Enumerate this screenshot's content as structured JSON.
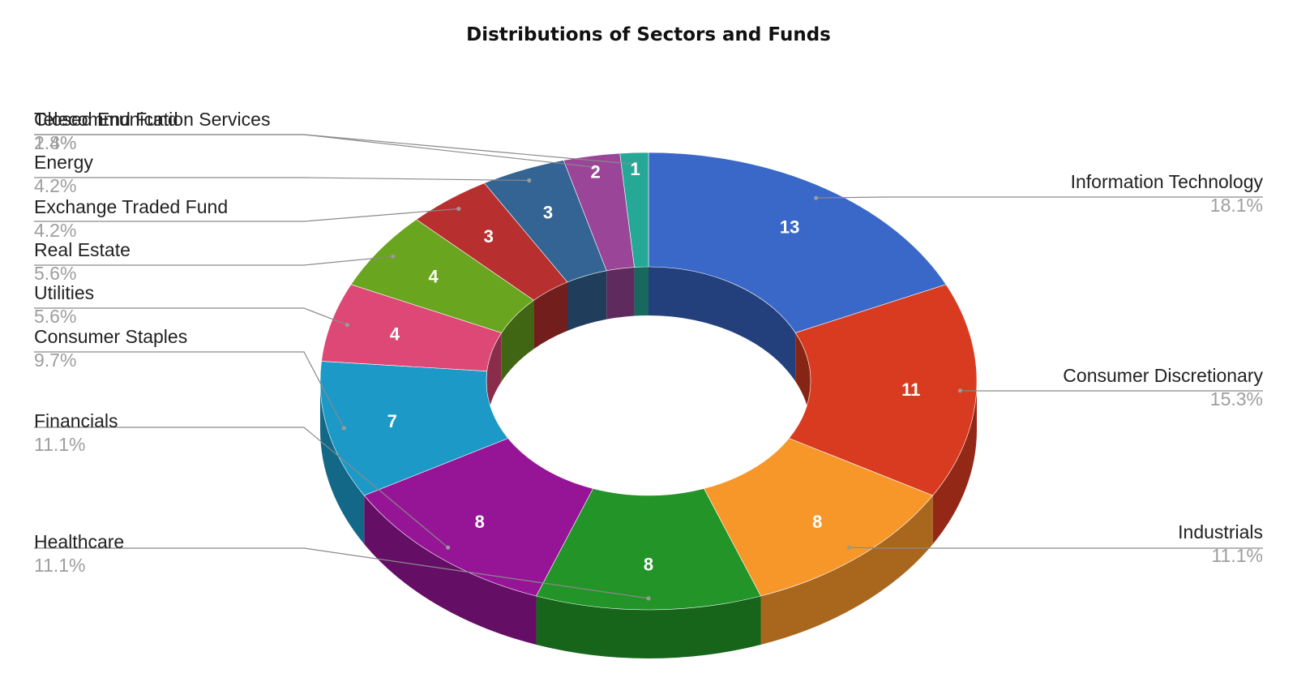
{
  "chart_data": {
    "type": "pie",
    "title": "Distributions of Sectors and Funds",
    "donut": true,
    "three_d": true,
    "slices": [
      {
        "label": "Information Technology",
        "value": 13,
        "percent": "18.1%",
        "color": "#3a68c8"
      },
      {
        "label": "Consumer Discretionary",
        "value": 11,
        "percent": "15.3%",
        "color": "#d93b21"
      },
      {
        "label": "Industrials",
        "value": 8,
        "percent": "11.1%",
        "color": "#f7972a"
      },
      {
        "label": "Healthcare",
        "value": 8,
        "percent": "11.1%",
        "color": "#229428"
      },
      {
        "label": "Financials",
        "value": 8,
        "percent": "11.1%",
        "color": "#951596"
      },
      {
        "label": "Consumer Staples",
        "value": 7,
        "percent": "9.7%",
        "color": "#1c99c6"
      },
      {
        "label": "Utilities",
        "value": 4,
        "percent": "5.6%",
        "color": "#de4877"
      },
      {
        "label": "Real Estate",
        "value": 4,
        "percent": "5.6%",
        "color": "#69a51e"
      },
      {
        "label": "Exchange Traded Fund",
        "value": 3,
        "percent": "4.2%",
        "color": "#b7302f"
      },
      {
        "label": "Energy",
        "value": 3,
        "percent": "4.2%",
        "color": "#336494"
      },
      {
        "label": "Telecommunication Services",
        "value": 2,
        "percent": "2.8%",
        "color": "#9a4598"
      },
      {
        "label": "Closed End Fund",
        "value": 1,
        "percent": "1.4%",
        "color": "#25a996"
      }
    ],
    "legend": "none"
  }
}
